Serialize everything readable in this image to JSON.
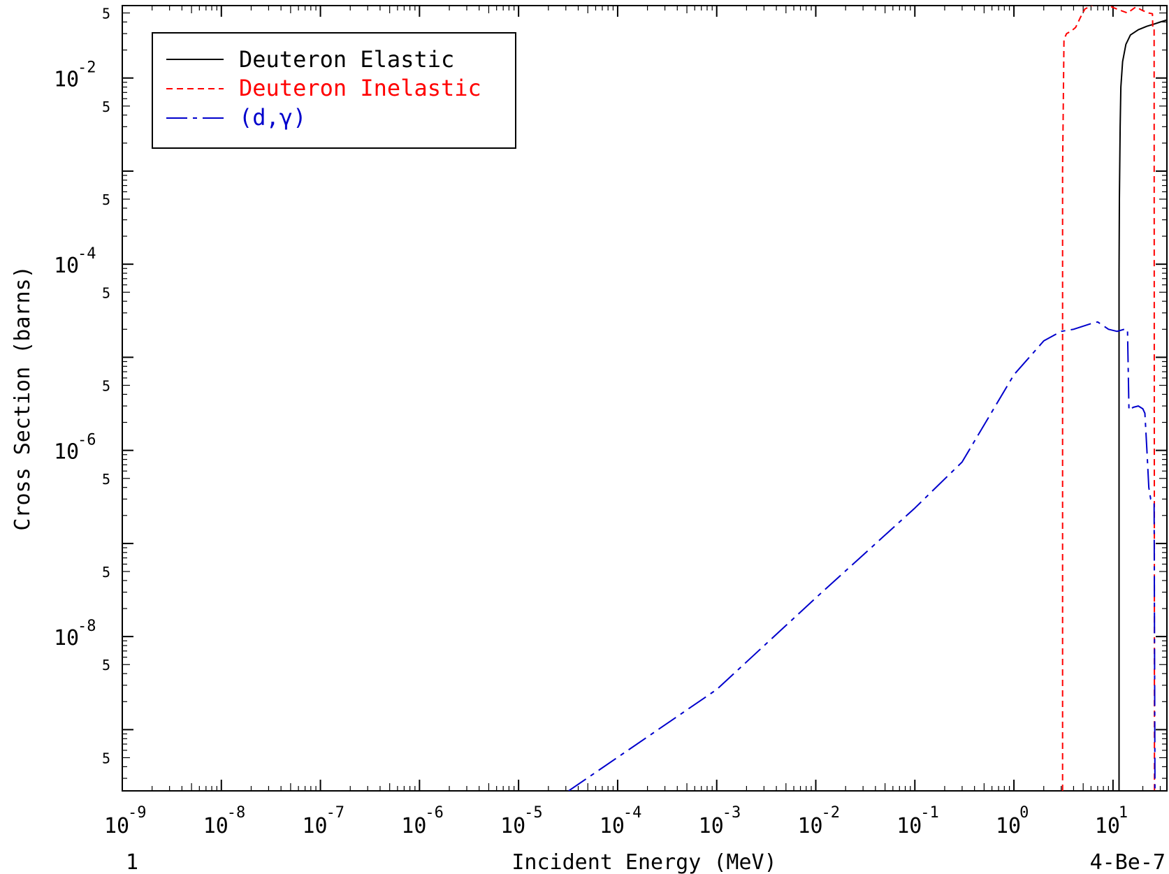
{
  "chart_data": {
    "type": "line",
    "xlabel": "Incident Energy (MeV)",
    "ylabel": "Cross Section (barns)",
    "x_scale": "log",
    "y_scale": "log",
    "xlim": [
      1e-09,
      35
    ],
    "ylim": [
      2.2e-10,
      0.06
    ],
    "x_tick_exponents": [
      -9,
      -8,
      -7,
      -6,
      -5,
      -4,
      -3,
      -2,
      -1,
      0,
      1
    ],
    "y_tick_exponents": [
      -2,
      -4,
      -6,
      -8
    ],
    "y_minor_label": "5",
    "corner_left_label": "1",
    "corner_right_label": "4-Be-7",
    "legend_position": "top-left",
    "grid": false,
    "series": [
      {
        "name": "Deuteron Elastic",
        "color": "#000000",
        "dash": "solid",
        "x": [
          11.5,
          11.5,
          11.6,
          11.8,
          12.0,
          12.5,
          13.5,
          15,
          18,
          22,
          26,
          30,
          35
        ],
        "y": [
          2.2e-10,
          8e-05,
          0.0005,
          0.003,
          0.008,
          0.015,
          0.023,
          0.029,
          0.033,
          0.036,
          0.038,
          0.04,
          0.042
        ]
      },
      {
        "name": "Deuteron Inelastic",
        "color": "#ff0000",
        "dash": "dashed",
        "x": [
          3.1,
          3.1,
          3.2,
          3.4,
          3.8,
          4.2,
          4.7,
          5.2,
          6,
          7,
          8,
          9,
          11,
          14,
          17,
          20,
          23,
          25,
          25.2,
          26,
          26.2
        ],
        "y": [
          2.2e-10,
          0.001,
          0.026,
          0.03,
          0.032,
          0.035,
          0.045,
          0.055,
          0.06,
          0.063,
          0.063,
          0.06,
          0.055,
          0.05,
          0.058,
          0.053,
          0.05,
          0.049,
          0.035,
          0.035,
          2.2e-10
        ]
      },
      {
        "name": "(d,γ)",
        "color": "#0000cc",
        "dash": "dashdot",
        "x": [
          3.2e-05,
          0.001,
          0.01,
          0.1,
          0.3,
          1.0,
          2.0,
          3.0,
          4.0,
          6.0,
          7.0,
          9.0,
          11.0,
          13.0,
          14.0,
          14.5,
          16.0,
          18.0,
          20.0,
          21.0,
          22.0,
          23.0,
          24.0,
          25.0,
          26.0,
          26.5
        ],
        "y": [
          2.2e-10,
          2.7e-09,
          2.6e-08,
          2.4e-07,
          7.5e-07,
          6.5e-06,
          1.5e-05,
          1.9e-05,
          2e-05,
          2.3e-05,
          2.4e-05,
          2e-05,
          1.9e-05,
          2e-05,
          2e-05,
          2.7e-06,
          2.9e-06,
          3e-06,
          2.8e-06,
          2.5e-06,
          1e-06,
          4e-07,
          3e-07,
          2.9e-07,
          2.8e-07,
          2.2e-10
        ]
      }
    ]
  }
}
